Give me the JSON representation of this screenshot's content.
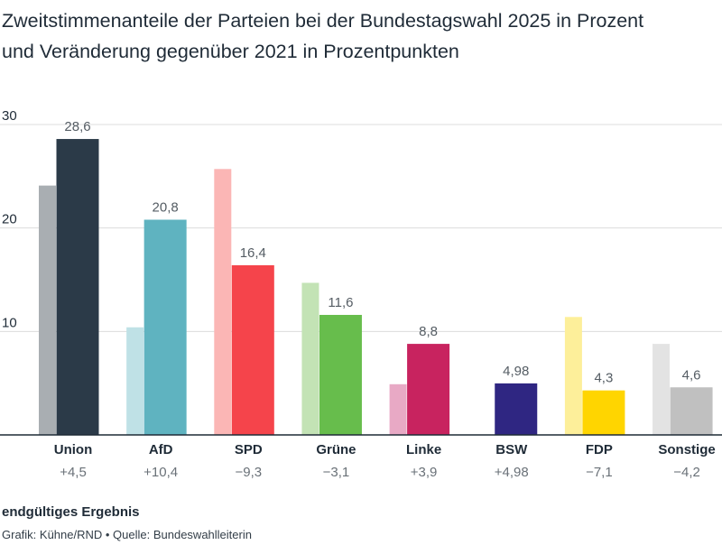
{
  "title_line1": "Zweitstimmenanteile der Parteien bei der Bundestagswahl 2025 in Prozent",
  "title_line2": "und Veränderung gegenüber 2021 in Prozentpunkten",
  "footer": {
    "status": "endgültiges Ergebnis",
    "source": "Grafik: Kühne/RND • Quelle: Bundeswahlleiterin"
  },
  "chart_data": {
    "type": "bar",
    "ylim": [
      0,
      30
    ],
    "yticks": [
      10,
      20,
      30
    ],
    "grid": true,
    "categories": [
      "Union",
      "AfD",
      "SPD",
      "Grüne",
      "Linke",
      "BSW",
      "FDP",
      "Sonstige"
    ],
    "series": [
      {
        "values": [
          24.1,
          10.4,
          25.7,
          14.7,
          4.9,
          0,
          11.4,
          8.8
        ],
        "colors": [
          "#a9aeb2",
          "#bfe1e6",
          "#fbb6b5",
          "#c3e3b5",
          "#e8a9c5",
          "#ffffff",
          "#fdef9a",
          "#e3e3e3"
        ]
      },
      {
        "values": [
          28.6,
          20.8,
          16.4,
          11.6,
          8.8,
          4.98,
          4.3,
          4.6
        ],
        "labels": [
          "28,6",
          "20,8",
          "16,4",
          "11,6",
          "8,8",
          "4,98",
          "4,3",
          "4,6"
        ],
        "colors": [
          "#2b3a48",
          "#5fb3c0",
          "#f5444b",
          "#67bd4c",
          "#c8235f",
          "#2f2682",
          "#ffd500",
          "#c0c0c0"
        ]
      }
    ],
    "changes": [
      "+4,5",
      "+10,4",
      "−9,3",
      "−3,1",
      "+3,9",
      "+4,98",
      "−7,1",
      "−4,2"
    ]
  }
}
